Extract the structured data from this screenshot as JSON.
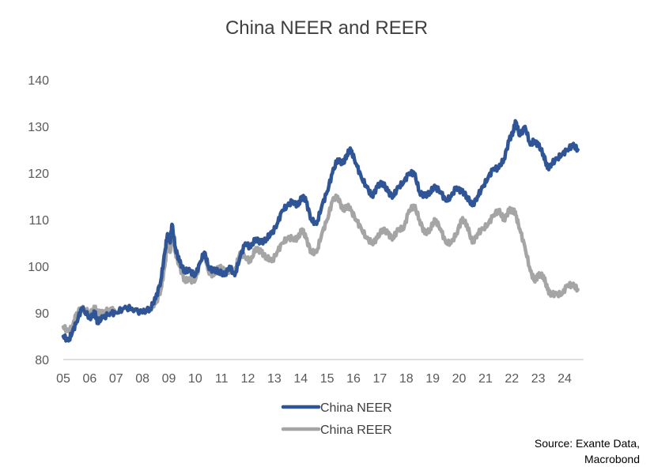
{
  "chart_data": {
    "type": "line",
    "title": "China NEER and REER",
    "xlabel": "",
    "ylabel": "",
    "ylim": [
      80,
      140
    ],
    "yticks": [
      80,
      90,
      100,
      110,
      120,
      130,
      140
    ],
    "xlim": [
      2005,
      2024.7
    ],
    "xticks": [
      {
        "label": "05",
        "x": 2005
      },
      {
        "label": "06",
        "x": 2006
      },
      {
        "label": "07",
        "x": 2007
      },
      {
        "label": "08",
        "x": 2008
      },
      {
        "label": "09",
        "x": 2009
      },
      {
        "label": "10",
        "x": 2010
      },
      {
        "label": "11",
        "x": 2011
      },
      {
        "label": "12",
        "x": 2012
      },
      {
        "label": "13",
        "x": 2013
      },
      {
        "label": "14",
        "x": 2014
      },
      {
        "label": "15",
        "x": 2015
      },
      {
        "label": "16",
        "x": 2016
      },
      {
        "label": "17",
        "x": 2017
      },
      {
        "label": "18",
        "x": 2018
      },
      {
        "label": "19",
        "x": 2019
      },
      {
        "label": "20",
        "x": 2020
      },
      {
        "label": "21",
        "x": 2021
      },
      {
        "label": "22",
        "x": 2022
      },
      {
        "label": "23",
        "x": 2023
      },
      {
        "label": "24",
        "x": 2024
      }
    ],
    "grid": false,
    "legend": "bottom-center",
    "series": [
      {
        "name": "China NEER",
        "color": "#2F5597",
        "points": [
          [
            2005.0,
            85
          ],
          [
            2005.2,
            84
          ],
          [
            2005.35,
            86
          ],
          [
            2005.5,
            88
          ],
          [
            2005.7,
            91
          ],
          [
            2006.0,
            89
          ],
          [
            2006.2,
            90
          ],
          [
            2006.3,
            88
          ],
          [
            2006.5,
            89
          ],
          [
            2006.8,
            90
          ],
          [
            2007.0,
            90
          ],
          [
            2007.3,
            91
          ],
          [
            2007.6,
            91
          ],
          [
            2008.0,
            90
          ],
          [
            2008.3,
            91
          ],
          [
            2008.5,
            93
          ],
          [
            2008.7,
            97
          ],
          [
            2008.85,
            103
          ],
          [
            2008.95,
            107
          ],
          [
            2009.05,
            105
          ],
          [
            2009.12,
            109
          ],
          [
            2009.25,
            104
          ],
          [
            2009.4,
            101
          ],
          [
            2009.6,
            99
          ],
          [
            2009.8,
            99
          ],
          [
            2010.0,
            98
          ],
          [
            2010.2,
            101
          ],
          [
            2010.35,
            103
          ],
          [
            2010.5,
            100
          ],
          [
            2010.7,
            99
          ],
          [
            2010.9,
            99
          ],
          [
            2011.1,
            98
          ],
          [
            2011.3,
            100
          ],
          [
            2011.5,
            98
          ],
          [
            2011.7,
            102
          ],
          [
            2011.9,
            105
          ],
          [
            2012.1,
            104
          ],
          [
            2012.3,
            106
          ],
          [
            2012.5,
            105
          ],
          [
            2012.7,
            106
          ],
          [
            2012.9,
            107
          ],
          [
            2013.1,
            109
          ],
          [
            2013.3,
            112
          ],
          [
            2013.5,
            113
          ],
          [
            2013.7,
            114
          ],
          [
            2013.9,
            113
          ],
          [
            2014.05,
            115
          ],
          [
            2014.2,
            114
          ],
          [
            2014.4,
            110
          ],
          [
            2014.6,
            109
          ],
          [
            2014.8,
            113
          ],
          [
            2015.0,
            116
          ],
          [
            2015.2,
            120
          ],
          [
            2015.4,
            123
          ],
          [
            2015.6,
            122
          ],
          [
            2015.75,
            124
          ],
          [
            2015.9,
            125
          ],
          [
            2016.1,
            122
          ],
          [
            2016.3,
            119
          ],
          [
            2016.5,
            117
          ],
          [
            2016.7,
            115
          ],
          [
            2016.9,
            117
          ],
          [
            2017.1,
            118
          ],
          [
            2017.3,
            116
          ],
          [
            2017.5,
            115
          ],
          [
            2017.7,
            117
          ],
          [
            2017.9,
            118
          ],
          [
            2018.1,
            120
          ],
          [
            2018.3,
            120
          ],
          [
            2018.5,
            116
          ],
          [
            2018.7,
            115
          ],
          [
            2018.9,
            116
          ],
          [
            2019.1,
            117
          ],
          [
            2019.3,
            116
          ],
          [
            2019.5,
            114
          ],
          [
            2019.7,
            115
          ],
          [
            2019.9,
            117
          ],
          [
            2020.1,
            116
          ],
          [
            2020.3,
            115
          ],
          [
            2020.5,
            113
          ],
          [
            2020.7,
            115
          ],
          [
            2020.9,
            117
          ],
          [
            2021.1,
            119
          ],
          [
            2021.3,
            121
          ],
          [
            2021.5,
            121
          ],
          [
            2021.7,
            123
          ],
          [
            2021.9,
            127
          ],
          [
            2022.05,
            129
          ],
          [
            2022.15,
            131
          ],
          [
            2022.3,
            128
          ],
          [
            2022.5,
            130
          ],
          [
            2022.7,
            126
          ],
          [
            2022.85,
            127
          ],
          [
            2023.0,
            126
          ],
          [
            2023.2,
            124
          ],
          [
            2023.35,
            121
          ],
          [
            2023.5,
            122
          ],
          [
            2023.7,
            123
          ],
          [
            2023.9,
            124
          ],
          [
            2024.1,
            125
          ],
          [
            2024.3,
            126
          ],
          [
            2024.5,
            125
          ]
        ]
      },
      {
        "name": "China REER",
        "color": "#A5A5A5",
        "points": [
          [
            2005.0,
            87
          ],
          [
            2005.2,
            86
          ],
          [
            2005.35,
            87
          ],
          [
            2005.5,
            90
          ],
          [
            2005.7,
            91
          ],
          [
            2006.0,
            90
          ],
          [
            2006.2,
            91
          ],
          [
            2006.3,
            90
          ],
          [
            2006.5,
            90
          ],
          [
            2006.8,
            91
          ],
          [
            2007.0,
            90
          ],
          [
            2007.3,
            91
          ],
          [
            2007.6,
            91
          ],
          [
            2008.0,
            90
          ],
          [
            2008.3,
            91
          ],
          [
            2008.5,
            92
          ],
          [
            2008.7,
            95
          ],
          [
            2008.85,
            100
          ],
          [
            2008.95,
            105
          ],
          [
            2009.05,
            103
          ],
          [
            2009.12,
            107
          ],
          [
            2009.25,
            103
          ],
          [
            2009.4,
            100
          ],
          [
            2009.6,
            97
          ],
          [
            2009.8,
            97
          ],
          [
            2010.0,
            97
          ],
          [
            2010.2,
            101
          ],
          [
            2010.35,
            103
          ],
          [
            2010.5,
            99
          ],
          [
            2010.7,
            98
          ],
          [
            2010.9,
            100
          ],
          [
            2011.1,
            99
          ],
          [
            2011.3,
            99
          ],
          [
            2011.5,
            99
          ],
          [
            2011.7,
            103
          ],
          [
            2011.9,
            102
          ],
          [
            2012.1,
            101
          ],
          [
            2012.3,
            104
          ],
          [
            2012.5,
            103
          ],
          [
            2012.7,
            102
          ],
          [
            2012.9,
            101
          ],
          [
            2013.1,
            103
          ],
          [
            2013.3,
            105
          ],
          [
            2013.5,
            106
          ],
          [
            2013.7,
            106
          ],
          [
            2013.9,
            106
          ],
          [
            2014.05,
            108
          ],
          [
            2014.2,
            106
          ],
          [
            2014.4,
            103
          ],
          [
            2014.6,
            103
          ],
          [
            2014.8,
            107
          ],
          [
            2015.0,
            110
          ],
          [
            2015.2,
            114
          ],
          [
            2015.4,
            115
          ],
          [
            2015.6,
            112
          ],
          [
            2015.75,
            113
          ],
          [
            2015.9,
            112
          ],
          [
            2016.1,
            110
          ],
          [
            2016.3,
            108
          ],
          [
            2016.5,
            106
          ],
          [
            2016.7,
            105
          ],
          [
            2016.9,
            106
          ],
          [
            2017.1,
            108
          ],
          [
            2017.3,
            107
          ],
          [
            2017.5,
            106
          ],
          [
            2017.7,
            108
          ],
          [
            2017.9,
            108
          ],
          [
            2018.1,
            112
          ],
          [
            2018.3,
            113
          ],
          [
            2018.5,
            110
          ],
          [
            2018.7,
            107
          ],
          [
            2018.9,
            108
          ],
          [
            2019.1,
            110
          ],
          [
            2019.3,
            108
          ],
          [
            2019.5,
            105
          ],
          [
            2019.7,
            105
          ],
          [
            2019.9,
            107
          ],
          [
            2020.1,
            110
          ],
          [
            2020.3,
            109
          ],
          [
            2020.5,
            105
          ],
          [
            2020.7,
            107
          ],
          [
            2020.9,
            108
          ],
          [
            2021.1,
            109
          ],
          [
            2021.3,
            111
          ],
          [
            2021.5,
            112
          ],
          [
            2021.7,
            110
          ],
          [
            2021.9,
            112
          ],
          [
            2022.05,
            112
          ],
          [
            2022.15,
            111
          ],
          [
            2022.3,
            108
          ],
          [
            2022.5,
            104
          ],
          [
            2022.7,
            99
          ],
          [
            2022.85,
            97
          ],
          [
            2023.0,
            98
          ],
          [
            2023.2,
            98
          ],
          [
            2023.35,
            95
          ],
          [
            2023.5,
            94
          ],
          [
            2023.7,
            94
          ],
          [
            2023.9,
            94
          ],
          [
            2024.1,
            96
          ],
          [
            2024.3,
            96
          ],
          [
            2024.5,
            95
          ]
        ]
      }
    ],
    "source": [
      "Source: Exante Data,",
      "Macrobond"
    ]
  }
}
